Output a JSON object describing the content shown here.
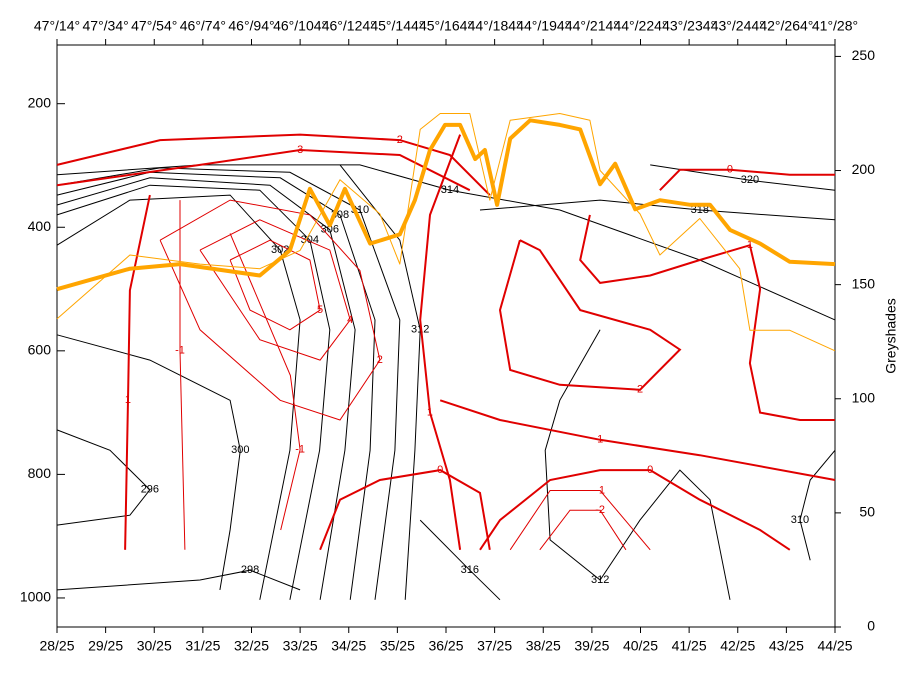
{
  "chart_data": {
    "type": "line",
    "y2label": "Greyshades",
    "xlim": [
      28,
      44
    ],
    "ylim": [
      1047,
      105
    ],
    "y2lim": [
      0,
      255
    ],
    "yticks": [
      200,
      400,
      600,
      800,
      1000
    ],
    "y2ticks": [
      0,
      50,
      100,
      150,
      200,
      250
    ],
    "xticks": [
      {
        "value": 28,
        "label": "28/25"
      },
      {
        "value": 29,
        "label": "29/25"
      },
      {
        "value": 30,
        "label": "30/25"
      },
      {
        "value": 31,
        "label": "31/25"
      },
      {
        "value": 32,
        "label": "32/25"
      },
      {
        "value": 33,
        "label": "33/25"
      },
      {
        "value": 34,
        "label": "34/25"
      },
      {
        "value": 35,
        "label": "35/25"
      },
      {
        "value": 36,
        "label": "36/25"
      },
      {
        "value": 37,
        "label": "37/25"
      },
      {
        "value": 38,
        "label": "38/25"
      },
      {
        "value": 39,
        "label": "39/25"
      },
      {
        "value": 40,
        "label": "40/25"
      },
      {
        "value": 41,
        "label": "41/25"
      },
      {
        "value": 42,
        "label": "42/25"
      },
      {
        "value": 43,
        "label": "43/25"
      },
      {
        "value": 44,
        "label": "44/25"
      }
    ],
    "x2ticks": [
      {
        "value": 28,
        "label": "47°/14°"
      },
      {
        "value": 29,
        "label": "47°/34°"
      },
      {
        "value": 30,
        "label": "47°/54°"
      },
      {
        "value": 31,
        "label": "46°/74°"
      },
      {
        "value": 32,
        "label": "46°/94°"
      },
      {
        "value": 33,
        "label": "46°/104°"
      },
      {
        "value": 34,
        "label": "46°/124°"
      },
      {
        "value": 35,
        "label": "45°/144°"
      },
      {
        "value": 36,
        "label": "45°/164°"
      },
      {
        "value": 37,
        "label": "44°/184°"
      },
      {
        "value": 38,
        "label": "44°/194°"
      },
      {
        "value": 39,
        "label": "44°/214°"
      },
      {
        "value": 40,
        "label": "44°/224°"
      },
      {
        "value": 41,
        "label": "43°/234°"
      },
      {
        "value": 42,
        "label": "43°/244°"
      },
      {
        "value": 43,
        "label": "42°/264°"
      },
      {
        "value": 44,
        "label": "41°/28°"
      }
    ],
    "series": [
      {
        "color": "#ffa500",
        "width": 4,
        "axis": "y2",
        "x": [
          28.0,
          29.5,
          30.53,
          32.17,
          32.79,
          33.2,
          33.61,
          33.92,
          34.44,
          35.05,
          35.36,
          35.67,
          35.98,
          36.29,
          36.6,
          36.8,
          37.05,
          37.32,
          37.73,
          38.34,
          38.76,
          39.17,
          39.48,
          39.89,
          40.4,
          41.02,
          41.43,
          41.84,
          42.46,
          43.07,
          44.0
        ],
        "values": [
          148,
          157,
          159,
          154,
          165,
          192,
          176,
          192,
          168,
          172,
          187,
          209,
          220,
          220,
          205,
          209,
          185,
          214,
          222,
          220,
          218,
          194,
          203,
          183,
          187,
          185,
          185,
          174,
          168,
          160,
          159
        ]
      },
      {
        "color": "#ffa500",
        "width": 1,
        "axis": "y2",
        "x": [
          28.0,
          29.5,
          30.94,
          32.17,
          33.0,
          33.82,
          34.64,
          35.05,
          35.47,
          35.88,
          36.49,
          36.9,
          37.32,
          38.34,
          38.96,
          39.17,
          39.99,
          40.4,
          41.22,
          42.04,
          42.25,
          43.07,
          44.0
        ],
        "values": [
          135,
          163,
          159,
          157,
          165,
          196,
          181,
          159,
          218,
          225,
          225,
          187,
          222,
          225,
          222,
          200,
          181,
          163,
          179,
          157,
          130,
          130,
          121
        ]
      }
    ],
    "contours": [
      {
        "level": 296,
        "color": "#000000",
        "width": 1,
        "x": [
          28,
          29.09,
          29.91,
          29.5,
          28
        ],
        "values": [
          728,
          761,
          825,
          866,
          882
        ]
      },
      {
        "level": 298,
        "color": "#000000",
        "width": 1,
        "x": [
          28,
          30.94,
          31.97,
          33.0
        ],
        "values": [
          987,
          971,
          955,
          987
        ]
      },
      {
        "level": 300,
        "color": "#000000",
        "width": 1,
        "x": [
          28,
          29.91,
          31.56,
          31.77,
          31.56,
          31.35
        ],
        "values": [
          574,
          615,
          680,
          761,
          890,
          987
        ]
      },
      {
        "level": 302,
        "color": "#000000",
        "width": 1,
        "x": [
          28,
          29.5,
          31.56,
          32.59,
          33.0,
          32.79,
          32.17
        ],
        "values": [
          429,
          356,
          348,
          437,
          550,
          761,
          1003
        ]
      },
      {
        "level": 304,
        "color": "#000000",
        "width": 1,
        "x": [
          28,
          29.91,
          32.17,
          33.2,
          33.61,
          33.4,
          32.79
        ],
        "values": [
          380,
          332,
          340,
          421,
          566,
          761,
          1003
        ]
      },
      {
        "level": 306,
        "color": "#000000",
        "width": 1,
        "x": [
          28,
          29.91,
          32.38,
          33.61,
          34.13,
          33.92,
          33.41
        ],
        "values": [
          364,
          320,
          332,
          404,
          566,
          761,
          1003
        ]
      },
      {
        "level": 308,
        "color": "#000000",
        "width": 1,
        "x": [
          28,
          29.91,
          32.59,
          33.82,
          34.54,
          34.44,
          34.03
        ],
        "values": [
          348,
          311,
          320,
          380,
          550,
          761,
          1003
        ]
      },
      {
        "level": 310,
        "color": "#000000",
        "width": 1,
        "x": [
          28,
          30.12,
          32.79,
          34.23,
          35.05,
          34.95,
          34.54
        ],
        "values": [
          332,
          304,
          311,
          372,
          550,
          761,
          1003
        ]
      },
      {
        "level": 312,
        "color": "#000000",
        "width": 1,
        "x": [
          33.82,
          35.05,
          35.47,
          35.36,
          35.16
        ],
        "values": [
          299,
          421,
          566,
          761,
          1003
        ]
      },
      {
        "level": 314,
        "color": "#000000",
        "width": 1,
        "x": [
          28,
          30.94,
          34.23,
          36.08,
          38.34,
          41.22,
          44
        ],
        "values": [
          315,
          299,
          299,
          340,
          372,
          453,
          550
        ]
      },
      {
        "level": 316,
        "color": "#000000",
        "width": 1,
        "x": [
          35.47,
          36.49,
          37.11
        ],
        "values": [
          874,
          955,
          1003
        ]
      },
      {
        "level": 318,
        "color": "#000000",
        "width": 1,
        "x": [
          36.7,
          39.17,
          41.22,
          44
        ],
        "values": [
          372,
          356,
          372,
          388
        ]
      },
      {
        "level": 320,
        "color": "#000000",
        "width": 1,
        "x": [
          40.2,
          42.25,
          44
        ],
        "values": [
          299,
          324,
          340
        ]
      },
      {
        "level": 312,
        "color": "#000000",
        "width": 1,
        "x": [
          39.17,
          38.34,
          38.04,
          38.14,
          39.17,
          39.99,
          40.81,
          41.43,
          41.84
        ],
        "values": [
          566,
          680,
          761,
          906,
          971,
          874,
          793,
          841,
          1003
        ]
      },
      {
        "level": 310,
        "color": "#000000",
        "width": 1,
        "x": [
          44,
          43.49,
          43.28,
          43.49
        ],
        "values": [
          761,
          809,
          874,
          939
        ]
      },
      {
        "level": 1,
        "color": "#e00000",
        "width": 2,
        "x": [
          29.91,
          29.5,
          29.46,
          29.4
        ],
        "values": [
          348,
          502,
          680,
          922
        ]
      },
      {
        "level": 3,
        "color": "#e00000",
        "width": 2,
        "x": [
          28,
          30.94,
          33.0,
          35.05,
          36.49
        ],
        "values": [
          332,
          299,
          275,
          283,
          340
        ]
      },
      {
        "level": 2,
        "color": "#e00000",
        "width": 2,
        "x": [
          28,
          30.12,
          33.0,
          35.05,
          36.08,
          36.9
        ],
        "values": [
          299,
          259,
          250,
          259,
          283,
          348
        ]
      },
      {
        "level": 1,
        "color": "#e00000",
        "width": 2,
        "x": [
          36.29,
          35.67,
          35.47,
          35.67,
          36.08,
          36.29
        ],
        "values": [
          250,
          380,
          550,
          700,
          809,
          922
        ]
      },
      {
        "level": 1,
        "color": "#e00000",
        "width": 2,
        "x": [
          35.88,
          37.11,
          39.17,
          41.22,
          44
        ],
        "values": [
          680,
          712,
          744,
          769,
          809
        ]
      },
      {
        "level": 0,
        "color": "#e00000",
        "width": 2,
        "x": [
          33.41,
          33.82,
          34.64,
          35.88,
          36.7,
          36.9
        ],
        "values": [
          922,
          841,
          809,
          793,
          830,
          922
        ]
      },
      {
        "level": 0,
        "color": "#e00000",
        "width": 2,
        "x": [
          36.7,
          37.11,
          38.14,
          39.17,
          40.2,
          41.22,
          42.46,
          43.07
        ],
        "values": [
          922,
          874,
          809,
          793,
          793,
          841,
          890,
          922
        ]
      },
      {
        "level": 2,
        "color": "#e00000",
        "width": 2,
        "x": [
          37.52,
          37.93,
          38.76,
          40.2,
          40.81,
          39.99,
          38.34,
          37.32,
          37.11,
          37.52
        ],
        "values": [
          421,
          437,
          534,
          566,
          598,
          663,
          655,
          631,
          534,
          421
        ]
      },
      {
        "level": 1,
        "color": "#e00000",
        "width": 2,
        "x": [
          38.96,
          38.76,
          39.17,
          40.2,
          41.22,
          42.25,
          42.46,
          42.25,
          42.46,
          43.28,
          44
        ],
        "values": [
          380,
          453,
          490,
          478,
          453,
          429,
          500,
          620,
          700,
          712,
          712
        ]
      },
      {
        "level": 0,
        "color": "#e00000",
        "width": 2,
        "x": [
          40.4,
          40.81,
          41.84,
          43.07,
          44
        ],
        "values": [
          340,
          307,
          307,
          315,
          315
        ]
      },
      {
        "level": 5,
        "color": "#e00000",
        "width": 1,
        "x": [
          31.56,
          32.38,
          33.2,
          33.41,
          32.79,
          31.97,
          31.56
        ],
        "values": [
          453,
          421,
          453,
          534,
          566,
          534,
          453
        ]
      },
      {
        "level": 4,
        "color": "#e00000",
        "width": 1,
        "x": [
          30.94,
          32.17,
          33.61,
          34.03,
          33.41,
          32.17,
          30.94
        ],
        "values": [
          437,
          388,
          437,
          550,
          615,
          582,
          437
        ]
      },
      {
        "level": 2,
        "color": "#e00000",
        "width": 1,
        "x": [
          30.12,
          31.56,
          33.2,
          34.23,
          34.64,
          33.82,
          32.59,
          30.94,
          30.12
        ],
        "values": [
          421,
          356,
          380,
          470,
          615,
          712,
          680,
          566,
          421
        ]
      },
      {
        "level": -1,
        "color": "#e00000",
        "width": 1,
        "x": [
          31.56,
          32.8,
          33.0,
          32.6
        ],
        "values": [
          410,
          640,
          760,
          890
        ]
      },
      {
        "level": -1,
        "color": "#e00000",
        "width": 1,
        "x": [
          30.53,
          30.53,
          30.63
        ],
        "values": [
          356,
          600,
          922
        ]
      },
      {
        "level": -1,
        "color": "#e00000",
        "width": 1,
        "x": [
          37.32,
          38.14,
          39.17,
          40.2
        ],
        "values": [
          922,
          826,
          826,
          922
        ]
      },
      {
        "level": -2,
        "color": "#e00000",
        "width": 1,
        "x": [
          37.93,
          38.55,
          39.17,
          39.7
        ],
        "values": [
          922,
          858,
          858,
          922
        ]
      }
    ]
  }
}
